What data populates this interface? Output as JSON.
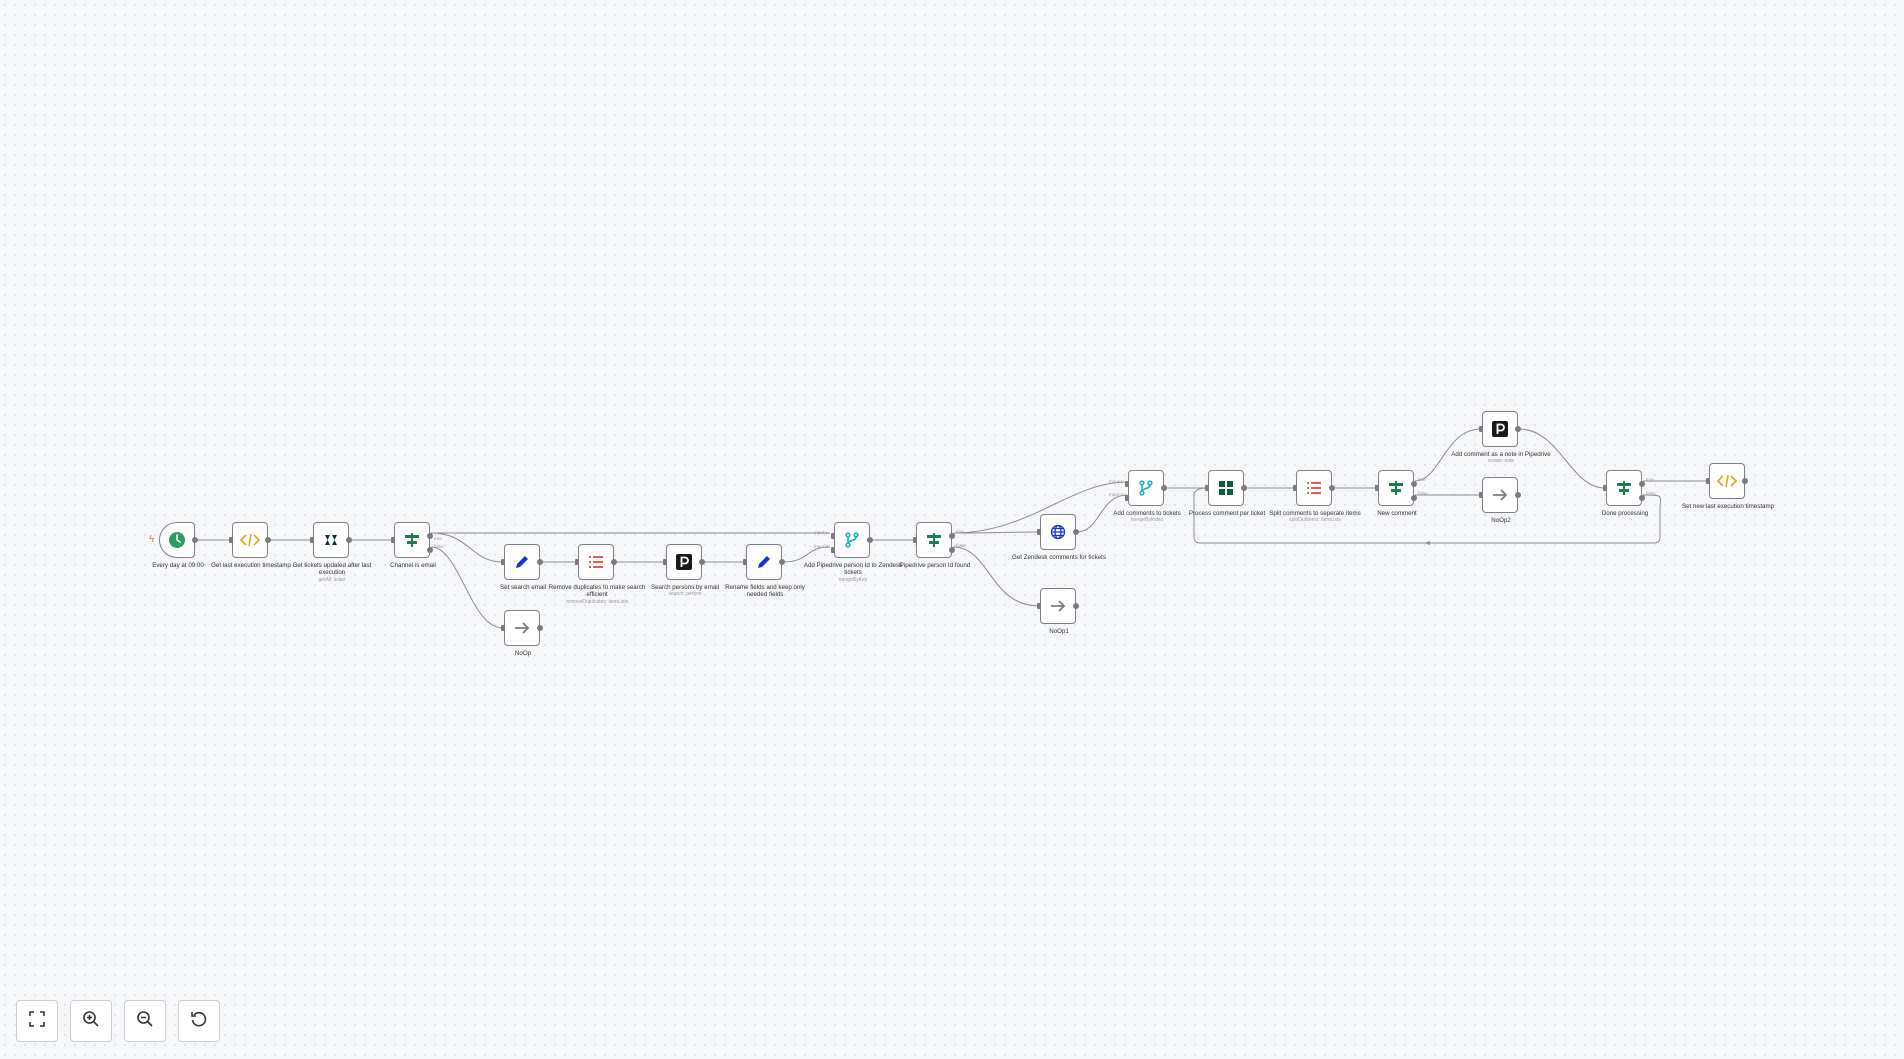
{
  "nodes": {
    "every_day": {
      "label": "Every day at 09:00",
      "icon": "clock-icon"
    },
    "get_last_ts": {
      "label": "Get last execution timestamp",
      "icon": "code-icon"
    },
    "get_tickets": {
      "label": "Get tickets updated after last execution",
      "sub": "getAll: ticket",
      "icon": "zendesk-icon"
    },
    "channel_email": {
      "label": "Channel is email",
      "icon": "if-icon"
    },
    "set_search_email": {
      "label": "Set search email",
      "icon": "pencil-icon"
    },
    "remove_dupes": {
      "label": "Remove duplicates to make search efficient",
      "sub": "removeDuplicates: itemLists",
      "icon": "list-icon"
    },
    "search_persons": {
      "label": "Search persons by email",
      "sub": "search: person",
      "icon": "pipedrive-icon"
    },
    "rename_fields": {
      "label": "Rename fields and keep only needed fields",
      "icon": "pencil-icon"
    },
    "noop": {
      "label": "NoOp",
      "icon": "arrow-right-icon"
    },
    "add_pipedrive_id": {
      "label": "Add Pipedrive person Id to Zendesk tickets",
      "sub": "mergeByKey",
      "icon": "merge-icon"
    },
    "pipedrive_found": {
      "label": "Pipedrive person Id found",
      "icon": "if-icon"
    },
    "get_zendesk_comments": {
      "label": "Get Zendesk comments for tickets",
      "icon": "globe-icon"
    },
    "noop1": {
      "label": "NoOp1",
      "icon": "arrow-right-icon"
    },
    "add_comments": {
      "label": "Add comments to tickets",
      "sub": "mergeByIndex",
      "icon": "merge-icon"
    },
    "process_comment": {
      "label": "Process comment per ticket",
      "icon": "split-batches-icon"
    },
    "split_comments": {
      "label": "Split comments to seperate items",
      "sub": "splitOutItems: itemLists",
      "icon": "list-icon"
    },
    "new_comment": {
      "label": "New comment",
      "icon": "if-icon"
    },
    "add_note": {
      "label": "Add comment as a note in Pipedrive",
      "sub": "create: note",
      "icon": "pipedrive-icon"
    },
    "noop2": {
      "label": "NoOp2",
      "icon": "arrow-right-icon"
    },
    "done_processing": {
      "label": "Done processing",
      "icon": "if-icon"
    },
    "set_new_ts": {
      "label": "Set new last execution timestamp",
      "icon": "code-icon"
    }
  },
  "port_labels": {
    "input1": "Input 1",
    "input2": "Input 2",
    "true": "true",
    "false": "false"
  },
  "controls": {
    "fit": "fit-view-icon",
    "zoom_in": "zoom-in-icon",
    "zoom_out": "zoom-out-icon",
    "reset": "reset-zoom-icon"
  },
  "colors": {
    "canvas_bg": "#f6f7f9",
    "edge": "#8c8c92",
    "if_green": "#1c7d4d",
    "code_orange": "#e9a61c",
    "merge_teal": "#18b3c0",
    "list_red": "#e65d4f",
    "pencil_blue": "#1434cb",
    "trigger_bolt": "#ff6b3d"
  }
}
